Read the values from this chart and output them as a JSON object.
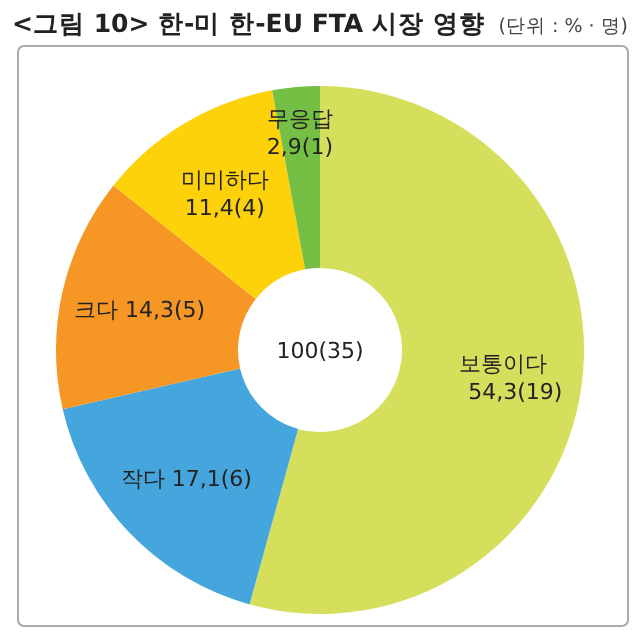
{
  "chart_data": {
    "type": "donut",
    "title": "<그림 10> 한-미 한-EU FTA 시장 영향",
    "subtitle": "(단위 : % · 명)",
    "categories": [
      "보통이다",
      "작다",
      "크다",
      "미미하다",
      "무응답"
    ],
    "values": [
      54.3,
      17.1,
      14.3,
      11.4,
      2.9
    ],
    "colors": [
      "#d6df5c",
      "#45a6dd",
      "#f59625",
      "#fdd20a",
      "#76bf45"
    ],
    "value_labels": [
      "54,3(19)",
      "17,1(6)",
      "14,3(5)",
      "11,4(4)",
      "2,9(1)"
    ],
    "annotations": [
      "100(35)"
    ]
  }
}
